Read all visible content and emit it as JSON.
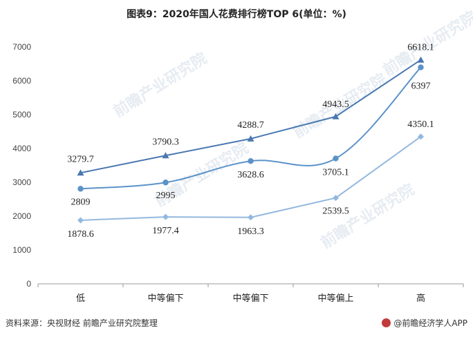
{
  "title": "图表9：2020年国人花费排行榜TOP 6(单位：%)",
  "watermark": "前瞻产业研究院",
  "footer": {
    "source": "资料来源：央视财经 前瞻产业研究院整理",
    "brand": "@前瞻经济学人APP"
  },
  "chart_data": {
    "type": "line",
    "title": "图表9：2020年国人花费排行榜TOP 6(单位：%)",
    "categories": [
      "低",
      "中等偏下",
      "中等偏下",
      "中等偏上",
      "高"
    ],
    "ylim": [
      0,
      7000
    ],
    "yticks": [
      0,
      1000,
      2000,
      3000,
      4000,
      5000,
      6000,
      7000
    ],
    "grid": false,
    "legend": "none",
    "series": [
      {
        "values": [
          3279.7,
          3790.3,
          4288.7,
          4943.5,
          6618.1
        ],
        "color": "#4a78b0",
        "marker": "triangle",
        "labels": [
          "3279.7",
          "3790.3",
          "4288.7",
          "4943.5",
          "6618.1"
        ]
      },
      {
        "values": [
          2809,
          2995,
          3628.6,
          3705.1,
          6397
        ],
        "color": "#5b92c8",
        "marker": "circle",
        "smooth": true,
        "labels": [
          "2809",
          "2995",
          "3628.6",
          "3705.1",
          "6397"
        ]
      },
      {
        "values": [
          1878.6,
          1977.4,
          1963.3,
          2539.5,
          4350.1
        ],
        "color": "#93b8de",
        "marker": "diamond",
        "labels": [
          "1878.6",
          "1977.4",
          "1963.3",
          "2539.5",
          "4350.1"
        ]
      }
    ]
  }
}
